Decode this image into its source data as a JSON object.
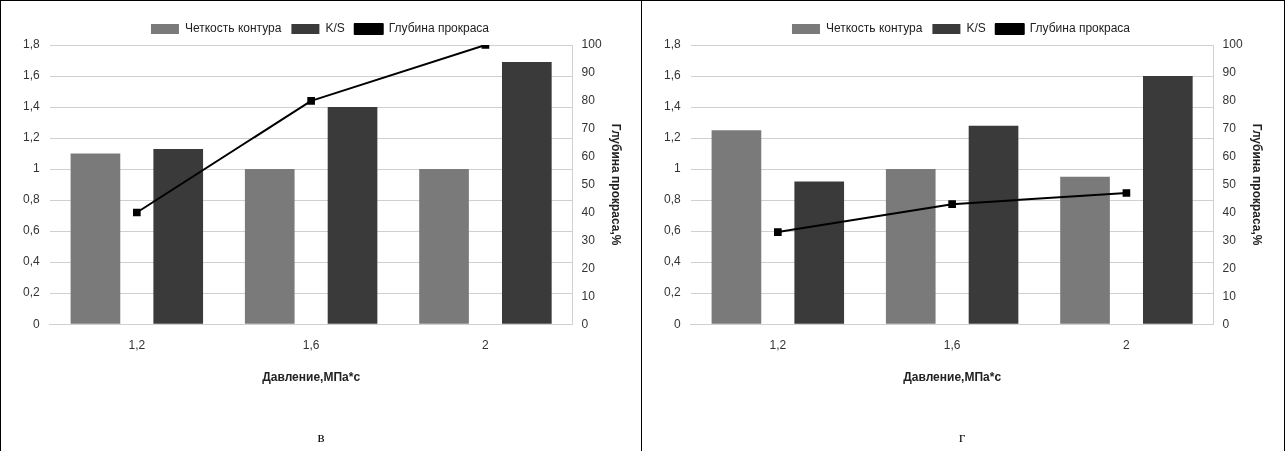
{
  "chart_data": [
    {
      "type": "bar",
      "categories": [
        "1,2",
        "1,6",
        "2"
      ],
      "xlabel": "Давление,МПа*с",
      "y2label": "Глубина прокраса,%",
      "legend": "top",
      "grid": "y",
      "marker": "square",
      "series": [
        {
          "name": "Четкость контура",
          "color": "#7a7a7a",
          "values": [
            1.1,
            1.0,
            1.0
          ]
        },
        {
          "name": "K/S",
          "color": "#3a3a3a",
          "values": [
            1.13,
            1.4,
            1.69
          ]
        },
        {
          "name": "Глубина прокраса",
          "type": "line",
          "axis": "y2",
          "color": "#000000",
          "values": [
            40,
            80,
            100
          ]
        }
      ],
      "ylim": [
        0,
        1.8
      ],
      "yticks": [
        {
          "value": 0,
          "label": "0"
        },
        {
          "value": 0.2,
          "label": "0,2"
        },
        {
          "value": 0.4,
          "label": "0,4"
        },
        {
          "value": 0.6,
          "label": "0,6"
        },
        {
          "value": 0.8,
          "label": "0,8"
        },
        {
          "value": 1,
          "label": "1"
        },
        {
          "value": 1.2,
          "label": "1,2"
        },
        {
          "value": 1.4,
          "label": "1,4"
        },
        {
          "value": 1.6,
          "label": "1,6"
        },
        {
          "value": 1.8,
          "label": "1,8"
        }
      ],
      "y2lim": [
        0,
        100
      ],
      "y2ticks": [
        0,
        10,
        20,
        30,
        40,
        50,
        60,
        70,
        80,
        90,
        100
      ],
      "annotations": [
        "в"
      ]
    },
    {
      "type": "bar",
      "categories": [
        "1,2",
        "1,6",
        "2"
      ],
      "xlabel": "Давление,МПа*с",
      "y2label": "Глубина прокраса,%",
      "legend": "top",
      "grid": "y",
      "marker": "square",
      "series": [
        {
          "name": "Четкость контура",
          "color": "#7a7a7a",
          "values": [
            1.25,
            1.0,
            0.95
          ]
        },
        {
          "name": "K/S",
          "color": "#3a3a3a",
          "values": [
            0.92,
            1.28,
            1.6
          ]
        },
        {
          "name": "Глубина прокраса",
          "type": "line",
          "axis": "y2",
          "color": "#000000",
          "values": [
            33,
            43,
            47
          ]
        }
      ],
      "ylim": [
        0,
        1.8
      ],
      "yticks": [
        {
          "value": 0,
          "label": "0"
        },
        {
          "value": 0.2,
          "label": "0,2"
        },
        {
          "value": 0.4,
          "label": "0,4"
        },
        {
          "value": 0.6,
          "label": "0,6"
        },
        {
          "value": 0.8,
          "label": "0,8"
        },
        {
          "value": 1,
          "label": "1"
        },
        {
          "value": 1.2,
          "label": "1,2"
        },
        {
          "value": 1.4,
          "label": "1,4"
        },
        {
          "value": 1.6,
          "label": "1,6"
        },
        {
          "value": 1.8,
          "label": "1,8"
        }
      ],
      "y2lim": [
        0,
        100
      ],
      "y2ticks": [
        0,
        10,
        20,
        30,
        40,
        50,
        60,
        70,
        80,
        90,
        100
      ],
      "annotations": [
        "г"
      ]
    }
  ]
}
